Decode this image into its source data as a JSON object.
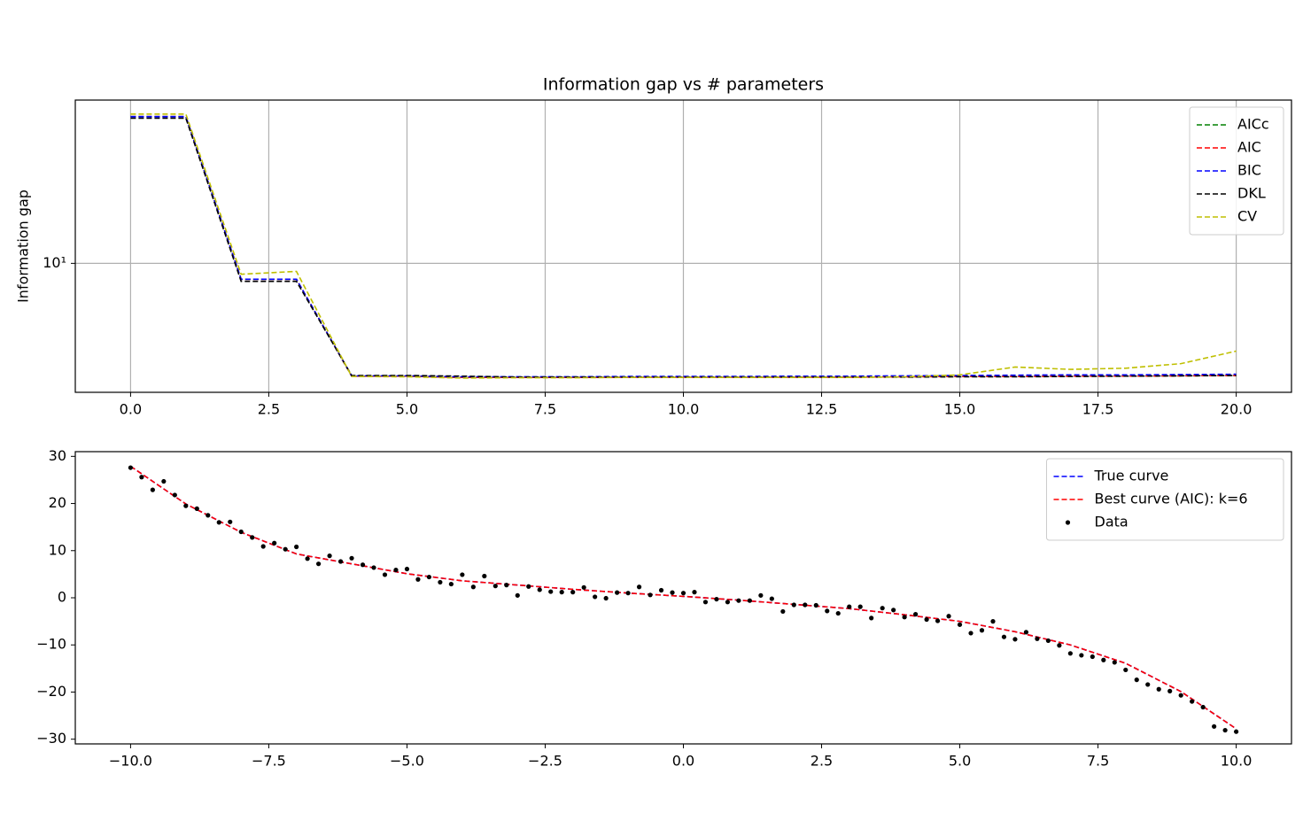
{
  "chart_data": [
    {
      "type": "line",
      "title": "Information gap vs # parameters",
      "ylabel": "Information gap",
      "log_y": true,
      "grid": true,
      "legend": "upper right",
      "xlim": [
        -1,
        21
      ],
      "ylim": [
        2.2,
        68
      ],
      "xticks": [
        {
          "value": 0,
          "label": "0.0"
        },
        {
          "value": 2.5,
          "label": "2.5"
        },
        {
          "value": 5,
          "label": "5.0"
        },
        {
          "value": 7.5,
          "label": "7.5"
        },
        {
          "value": 10,
          "label": "10.0"
        },
        {
          "value": 12.5,
          "label": "12.5"
        },
        {
          "value": 15,
          "label": "15.0"
        },
        {
          "value": 17.5,
          "label": "17.5"
        },
        {
          "value": 20,
          "label": "20.0"
        }
      ],
      "yticks": [
        {
          "value": 10,
          "label": "10¹"
        }
      ],
      "x": [
        0,
        1,
        2,
        3,
        4,
        5,
        6,
        7,
        8,
        9,
        10,
        11,
        12,
        13,
        14,
        15,
        16,
        17,
        18,
        19,
        20
      ],
      "series": [
        {
          "name": "AICc",
          "color": "#008000",
          "values": [
            56,
            56,
            8.3,
            8.3,
            2.66,
            2.66,
            2.62,
            2.62,
            2.62,
            2.63,
            2.63,
            2.63,
            2.63,
            2.63,
            2.64,
            2.65,
            2.65,
            2.66,
            2.66,
            2.67,
            2.68
          ]
        },
        {
          "name": "AIC",
          "color": "#ff0000",
          "values": [
            56,
            56,
            8.3,
            8.3,
            2.66,
            2.66,
            2.62,
            2.62,
            2.62,
            2.63,
            2.63,
            2.63,
            2.63,
            2.63,
            2.64,
            2.65,
            2.65,
            2.66,
            2.66,
            2.67,
            2.68
          ]
        },
        {
          "name": "BIC",
          "color": "#0000ff",
          "values": [
            56,
            56,
            8.3,
            8.3,
            2.67,
            2.67,
            2.64,
            2.64,
            2.64,
            2.65,
            2.65,
            2.65,
            2.66,
            2.66,
            2.67,
            2.68,
            2.69,
            2.7,
            2.7,
            2.71,
            2.72
          ]
        },
        {
          "name": "DKL",
          "color": "#000000",
          "values": [
            55,
            55,
            8.1,
            8.1,
            2.68,
            2.68,
            2.66,
            2.63,
            2.63,
            2.63,
            2.63,
            2.63,
            2.63,
            2.63,
            2.63,
            2.64,
            2.64,
            2.65,
            2.66,
            2.67,
            2.68
          ]
        },
        {
          "name": "CV",
          "color": "#bfbf00",
          "values": [
            57.7,
            57.7,
            8.8,
            9.1,
            2.65,
            2.64,
            2.6,
            2.61,
            2.61,
            2.62,
            2.62,
            2.62,
            2.62,
            2.62,
            2.64,
            2.7,
            2.96,
            2.88,
            2.92,
            3.08,
            3.57
          ]
        }
      ]
    },
    {
      "type": "line",
      "legend": "upper right",
      "xlim": [
        -11,
        11
      ],
      "ylim": [
        -31,
        31
      ],
      "xticks": [
        {
          "value": -10,
          "label": "−10.0"
        },
        {
          "value": -7.5,
          "label": "−7.5"
        },
        {
          "value": -5,
          "label": "−5.0"
        },
        {
          "value": -2.5,
          "label": "−2.5"
        },
        {
          "value": 0,
          "label": "0.0"
        },
        {
          "value": 2.5,
          "label": "2.5"
        },
        {
          "value": 5,
          "label": "5.0"
        },
        {
          "value": 7.5,
          "label": "7.5"
        },
        {
          "value": 10,
          "label": "10.0"
        }
      ],
      "yticks": [
        {
          "value": -30,
          "label": "−30"
        },
        {
          "value": -20,
          "label": "−20"
        },
        {
          "value": -10,
          "label": "−10"
        },
        0,
        10,
        20,
        30
      ],
      "series": [
        {
          "name": "True curve",
          "color": "#0000ff",
          "style": "dashed",
          "x": [
            -10,
            -9,
            -8,
            -7,
            -6,
            -5,
            -4,
            -3,
            -2,
            -1,
            0,
            1,
            2,
            3,
            4,
            5,
            6,
            7,
            8,
            9,
            10
          ],
          "values": [
            27.9,
            19.9,
            13.9,
            9.3,
            7.2,
            5.1,
            3.6,
            2.7,
            1.8,
            1.0,
            0.3,
            -0.5,
            -1.4,
            -2.3,
            -3.6,
            -5.0,
            -7.2,
            -10.0,
            -13.9,
            -19.9,
            -27.8
          ]
        },
        {
          "name": "Best curve (AIC): k=6",
          "color": "#ff0000",
          "style": "dashed",
          "x": [
            -10,
            -9,
            -8,
            -7,
            -6,
            -5,
            -4,
            -3,
            -2,
            -1,
            0,
            1,
            2,
            3,
            4,
            5,
            6,
            7,
            8,
            9,
            10
          ],
          "values": [
            27.9,
            19.9,
            13.9,
            9.3,
            7.2,
            5.1,
            3.6,
            2.7,
            1.8,
            1.0,
            0.3,
            -0.5,
            -1.4,
            -2.3,
            -3.6,
            -5.0,
            -7.2,
            -10.0,
            -13.9,
            -19.9,
            -27.8
          ]
        },
        {
          "name": "Data",
          "color": "#000000",
          "style": "points",
          "x": [
            -10,
            -9.8,
            -9.6,
            -9.4,
            -9.2,
            -9,
            -8.8,
            -8.6,
            -8.4,
            -8.2,
            -8,
            -7.8,
            -7.6,
            -7.4,
            -7.2,
            -7,
            -6.8,
            -6.6,
            -6.4,
            -6.2,
            -6,
            -5.8,
            -5.6,
            -5.4,
            -5.2,
            -5,
            -4.8,
            -4.6,
            -4.4,
            -4.2,
            -4,
            -3.8,
            -3.6,
            -3.4,
            -3.2,
            -3,
            -2.8,
            -2.6,
            -2.4,
            -2.2,
            -2,
            -1.8,
            -1.6,
            -1.4,
            -1.2,
            -1,
            -0.8,
            -0.6,
            -0.4,
            -0.2,
            0,
            0.2,
            0.4,
            0.6,
            0.8,
            1,
            1.2,
            1.4,
            1.6,
            1.8,
            2,
            2.2,
            2.4,
            2.6,
            2.8,
            3,
            3.2,
            3.4,
            3.6,
            3.8,
            4,
            4.2,
            4.4,
            4.6,
            4.8,
            5,
            5.2,
            5.4,
            5.6,
            5.8,
            6,
            6.2,
            6.4,
            6.6,
            6.8,
            7,
            7.2,
            7.4,
            7.6,
            7.8,
            8,
            8.2,
            8.4,
            8.6,
            8.8,
            9,
            9.2,
            9.4,
            9.6,
            9.8,
            10
          ],
          "values": [
            27.6,
            25.6,
            22.9,
            24.7,
            21.8,
            19.5,
            18.9,
            17.5,
            16.0,
            16.1,
            14.0,
            12.8,
            10.9,
            11.6,
            10.3,
            10.8,
            8.3,
            7.2,
            8.9,
            7.7,
            8.4,
            7.0,
            6.4,
            4.9,
            5.9,
            6.1,
            3.9,
            4.4,
            3.3,
            2.9,
            4.9,
            2.3,
            4.6,
            2.5,
            2.7,
            0.5,
            2.4,
            1.7,
            1.3,
            1.2,
            1.2,
            2.2,
            0.2,
            -0.1,
            1.1,
            1.0,
            2.3,
            0.6,
            1.6,
            1.1,
            1.0,
            1.2,
            -0.9,
            -0.3,
            -0.9,
            -0.6,
            -0.6,
            0.5,
            -0.2,
            -2.9,
            -1.5,
            -1.5,
            -1.6,
            -2.8,
            -3.3,
            -1.9,
            -1.9,
            -4.3,
            -2.2,
            -2.6,
            -4.1,
            -3.5,
            -4.6,
            -4.9,
            -3.9,
            -5.7,
            -7.5,
            -6.9,
            -5.0,
            -8.3,
            -8.8,
            -7.3,
            -8.7,
            -9.1,
            -10.1,
            -11.8,
            -12.2,
            -12.5,
            -13.2,
            -13.7,
            -15.3,
            -17.4,
            -18.4,
            -19.4,
            -19.8,
            -20.7,
            -22.0,
            -23.2,
            -27.3,
            -28.1,
            -28.4
          ]
        }
      ]
    }
  ]
}
